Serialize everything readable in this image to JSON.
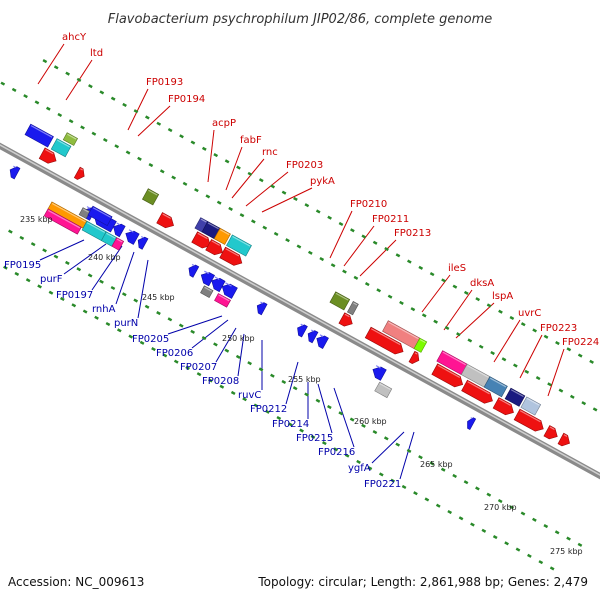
{
  "header": {
    "title": "Flavobacterium psychrophilum JIP02/86, complete genome"
  },
  "footer": {
    "accession": "Accession: NC_009613",
    "topology": "Topology: circular; Length: 2,861,988 bp; Genes: 2,479"
  },
  "colors": {
    "forward_label": "#cc0000",
    "reverse_label": "#0000aa",
    "backbone": "#8a8a8a",
    "tick_marks": "#2a8a2a"
  },
  "ticks": [
    "235 kbp",
    "240 kbp",
    "245 kbp",
    "250 kbp",
    "255 kbp",
    "260 kbp",
    "265 kbp",
    "270 kbp",
    "275 kbp"
  ],
  "forward_genes": [
    "ahcY",
    "ltd",
    "FP0193",
    "FP0194",
    "acpP",
    "fabF",
    "rnc",
    "FP0203",
    "pykA",
    "FP0210",
    "FP0211",
    "FP0213",
    "ileS",
    "dksA",
    "lspA",
    "uvrC",
    "FP0223",
    "FP0224"
  ],
  "reverse_genes": [
    "FP0195",
    "purF",
    "FP0197",
    "rnhA",
    "purN",
    "FP0205",
    "FP0206",
    "FP0207",
    "FP0208",
    "ruvC",
    "FP0212",
    "FP0214",
    "FP0215",
    "FP0216",
    "ygfA",
    "FP0221"
  ]
}
